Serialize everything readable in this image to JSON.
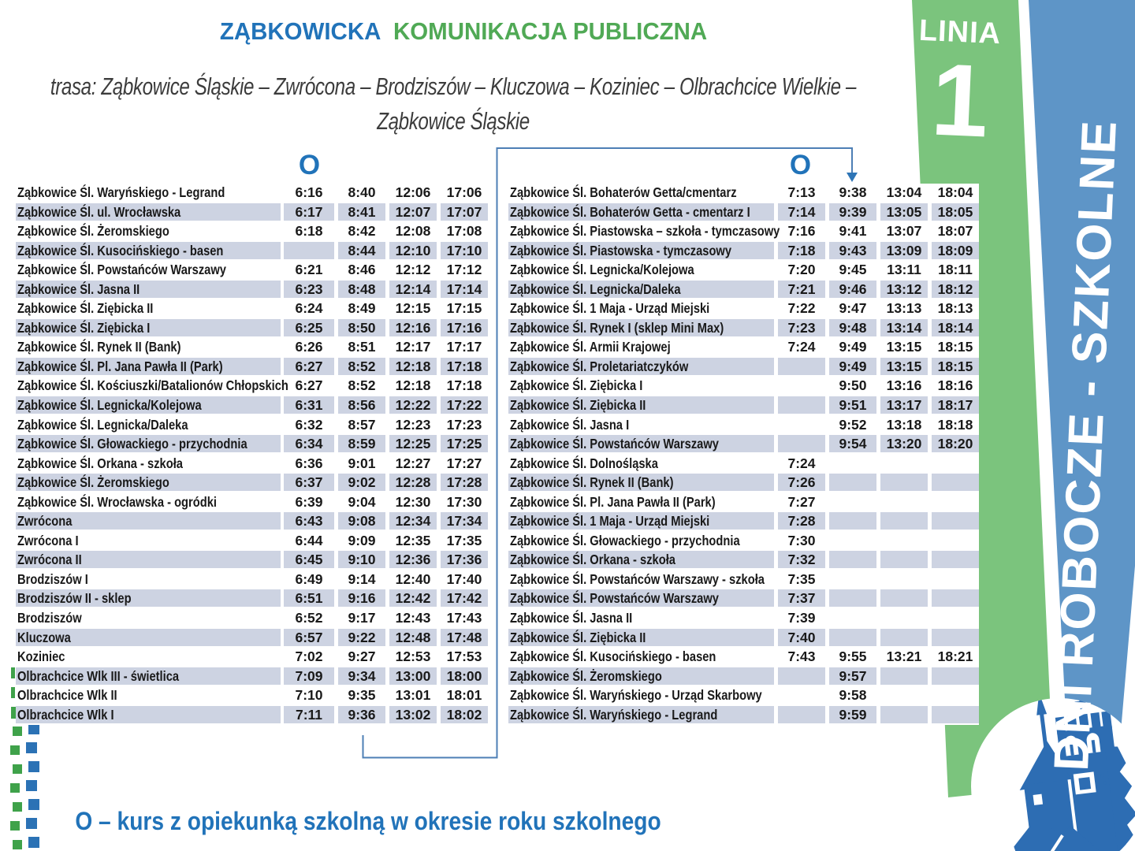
{
  "header": {
    "title_part1": "ZĄBKOWICKA",
    "title_part2": "KOMUNIKACJA PUBLICZNA",
    "route_line1": "trasa: Ząbkowice Śląskie – Zwrócona – Brodziszów – Kluczowa – Koziniec – Olbrachcice Wielkie –",
    "route_line2": "Ząbkowice Śląskie"
  },
  "line_badge": {
    "label": "LINIA",
    "number": "1"
  },
  "day_band": {
    "label": "DNI ROBOCZE - SZKOLNE"
  },
  "footnote": "O – kurs z opiekunką szkolną w okresie roku szkolnego",
  "colors": {
    "accent_blue": "#2173b9",
    "accent_green": "#50a955",
    "band_green": "#7bc47d",
    "band_blue": "#5e95c7",
    "row_shade": "#cdd3e2",
    "connector_blue": "#4d7fb5",
    "logo_blue": "#2d6db3"
  },
  "tables": [
    {
      "o_marker": "O",
      "rows": [
        {
          "stop": "Ząbkowice Śl. Waryńskiego - Legrand",
          "times": [
            "6:16",
            "8:40",
            "12:06",
            "17:06"
          ]
        },
        {
          "stop": "Ząbkowice Śl. ul. Wrocławska",
          "times": [
            "6:17",
            "8:41",
            "12:07",
            "17:07"
          ]
        },
        {
          "stop": "Ząbkowice Śl. Żeromskiego",
          "times": [
            "6:18",
            "8:42",
            "12:08",
            "17:08"
          ]
        },
        {
          "stop": "Ząbkowice Śl. Kusocińskiego - basen",
          "times": [
            "",
            "8:44",
            "12:10",
            "17:10"
          ]
        },
        {
          "stop": "Ząbkowice Śl. Powstańców Warszawy",
          "times": [
            "6:21",
            "8:46",
            "12:12",
            "17:12"
          ]
        },
        {
          "stop": "Ząbkowice Śl. Jasna II",
          "times": [
            "6:23",
            "8:48",
            "12:14",
            "17:14"
          ]
        },
        {
          "stop": "Ząbkowice Śl. Ziębicka II",
          "times": [
            "6:24",
            "8:49",
            "12:15",
            "17:15"
          ]
        },
        {
          "stop": "Ząbkowice Śl. Ziębicka I",
          "times": [
            "6:25",
            "8:50",
            "12:16",
            "17:16"
          ]
        },
        {
          "stop": "Ząbkowice Śl. Rynek II (Bank)",
          "times": [
            "6:26",
            "8:51",
            "12:17",
            "17:17"
          ]
        },
        {
          "stop": "Ząbkowice Śl. Pl. Jana Pawła II (Park)",
          "times": [
            "6:27",
            "8:52",
            "12:18",
            "17:18"
          ]
        },
        {
          "stop": "Ząbkowice Śl. Kościuszki/Batalionów Chłopskich",
          "times": [
            "6:27",
            "8:52",
            "12:18",
            "17:18"
          ]
        },
        {
          "stop": "Ząbkowice Śl. Legnicka/Kolejowa",
          "times": [
            "6:31",
            "8:56",
            "12:22",
            "17:22"
          ]
        },
        {
          "stop": "Ząbkowice Śl. Legnicka/Daleka",
          "times": [
            "6:32",
            "8:57",
            "12:23",
            "17:23"
          ]
        },
        {
          "stop": "Ząbkowice Śl. Głowackiego - przychodnia",
          "times": [
            "6:34",
            "8:59",
            "12:25",
            "17:25"
          ]
        },
        {
          "stop": "Ząbkowice Śl. Orkana - szkoła",
          "times": [
            "6:36",
            "9:01",
            "12:27",
            "17:27"
          ]
        },
        {
          "stop": "Ząbkowice Śl. Żeromskiego",
          "times": [
            "6:37",
            "9:02",
            "12:28",
            "17:28"
          ]
        },
        {
          "stop": "Ząbkowice Śl. Wrocławska - ogródki",
          "times": [
            "6:39",
            "9:04",
            "12:30",
            "17:30"
          ]
        },
        {
          "stop": "Zwrócona",
          "times": [
            "6:43",
            "9:08",
            "12:34",
            "17:34"
          ]
        },
        {
          "stop": "Zwrócona I",
          "times": [
            "6:44",
            "9:09",
            "12:35",
            "17:35"
          ]
        },
        {
          "stop": "Zwrócona II",
          "times": [
            "6:45",
            "9:10",
            "12:36",
            "17:36"
          ]
        },
        {
          "stop": "Brodziszów I",
          "times": [
            "6:49",
            "9:14",
            "12:40",
            "17:40"
          ]
        },
        {
          "stop": "Brodziszów II - sklep",
          "times": [
            "6:51",
            "9:16",
            "12:42",
            "17:42"
          ]
        },
        {
          "stop": "Brodziszów",
          "times": [
            "6:52",
            "9:17",
            "12:43",
            "17:43"
          ]
        },
        {
          "stop": "Kluczowa",
          "times": [
            "6:57",
            "9:22",
            "12:48",
            "17:48"
          ]
        },
        {
          "stop": "Koziniec",
          "times": [
            "7:02",
            "9:27",
            "12:53",
            "17:53"
          ]
        },
        {
          "stop": "Olbrachcice  Wlk III - świetlica",
          "times": [
            "7:09",
            "9:34",
            "13:00",
            "18:00"
          ]
        },
        {
          "stop": "Olbrachcice Wlk II",
          "times": [
            "7:10",
            "9:35",
            "13:01",
            "18:01"
          ]
        },
        {
          "stop": "Olbrachcice Wlk I",
          "times": [
            "7:11",
            "9:36",
            "13:02",
            "18:02"
          ]
        }
      ]
    },
    {
      "o_marker": "O",
      "rows": [
        {
          "stop": "Ząbkowice Śl. Bohaterów Getta/cmentarz",
          "times": [
            "7:13",
            "9:38",
            "13:04",
            "18:04"
          ]
        },
        {
          "stop": "Ząbkowice Śl. Bohaterów Getta - cmentarz I",
          "times": [
            "7:14",
            "9:39",
            "13:05",
            "18:05"
          ]
        },
        {
          "stop": "Ząbkowice Śl. Piastowska – szkoła - tymczasowy",
          "times": [
            "7:16",
            "9:41",
            "13:07",
            "18:07"
          ]
        },
        {
          "stop": "Ząbkowice Śl. Piastowska - tymczasowy",
          "times": [
            "7:18",
            "9:43",
            "13:09",
            "18:09"
          ]
        },
        {
          "stop": "Ząbkowice Śl. Legnicka/Kolejowa",
          "times": [
            "7:20",
            "9:45",
            "13:11",
            "18:11"
          ]
        },
        {
          "stop": "Ząbkowice Śl. Legnicka/Daleka",
          "times": [
            "7:21",
            "9:46",
            "13:12",
            "18:12"
          ]
        },
        {
          "stop": "Ząbkowice Śl. 1 Maja - Urząd Miejski",
          "times": [
            "7:22",
            "9:47",
            "13:13",
            "18:13"
          ]
        },
        {
          "stop": "Ząbkowice Śl. Rynek I (sklep Mini Max)",
          "times": [
            "7:23",
            "9:48",
            "13:14",
            "18:14"
          ]
        },
        {
          "stop": "Ząbkowice Śl. Armii Krajowej",
          "times": [
            "7:24",
            "9:49",
            "13:15",
            "18:15"
          ]
        },
        {
          "stop": "Ząbkowice Śl. Proletariatczyków",
          "times": [
            "",
            "9:49",
            "13:15",
            "18:15"
          ]
        },
        {
          "stop": "Ząbkowice Śl. Ziębicka I",
          "times": [
            "",
            "9:50",
            "13:16",
            "18:16"
          ]
        },
        {
          "stop": "Ząbkowice Śl. Ziębicka II",
          "times": [
            "",
            "9:51",
            "13:17",
            "18:17"
          ]
        },
        {
          "stop": "Ząbkowice Śl. Jasna I",
          "times": [
            "",
            "9:52",
            "13:18",
            "18:18"
          ]
        },
        {
          "stop": "Ząbkowice Śl. Powstańców Warszawy",
          "times": [
            "",
            "9:54",
            "13:20",
            "18:20"
          ]
        },
        {
          "stop": "Ząbkowice Śl. Dolnośląska",
          "times": [
            "7:24",
            "",
            "",
            ""
          ]
        },
        {
          "stop": "Ząbkowice Śl. Rynek II (Bank)",
          "times": [
            "7:26",
            "",
            "",
            ""
          ]
        },
        {
          "stop": "Ząbkowice Śl. Pl. Jana Pawła II (Park)",
          "times": [
            "7:27",
            "",
            "",
            ""
          ]
        },
        {
          "stop": "Ząbkowice Śl. 1 Maja - Urząd Miejski",
          "times": [
            "7:28",
            "",
            "",
            ""
          ]
        },
        {
          "stop": "Ząbkowice Śl. Głowackiego - przychodnia",
          "times": [
            "7:30",
            "",
            "",
            ""
          ]
        },
        {
          "stop": "Ząbkowice Śl. Orkana - szkoła",
          "times": [
            "7:32",
            "",
            "",
            ""
          ]
        },
        {
          "stop": "Ząbkowice Śl. Powstańców Warszawy - szkoła",
          "times": [
            "7:35",
            "",
            "",
            ""
          ]
        },
        {
          "stop": "Ząbkowice Śl. Powstańców Warszawy",
          "times": [
            "7:37",
            "",
            "",
            ""
          ]
        },
        {
          "stop": "Ząbkowice Śl. Jasna II",
          "times": [
            "7:39",
            "",
            "",
            ""
          ]
        },
        {
          "stop": "Ząbkowice Śl. Ziębicka II",
          "times": [
            "7:40",
            "",
            "",
            ""
          ]
        },
        {
          "stop": "Ząbkowice Śl. Kusocińskiego - basen",
          "times": [
            "7:43",
            "9:55",
            "13:21",
            "18:21"
          ]
        },
        {
          "stop": "Ząbkowice Śl. Żeromskiego",
          "times": [
            "",
            "9:57",
            "",
            ""
          ]
        },
        {
          "stop": "Ząbkowice Śl. Waryńskiego - Urząd Skarbowy",
          "times": [
            "",
            "9:58",
            "",
            ""
          ]
        },
        {
          "stop": "Ząbkowice Śl. Waryńskiego - Legrand",
          "times": [
            "",
            "9:59",
            "",
            ""
          ]
        }
      ]
    }
  ]
}
